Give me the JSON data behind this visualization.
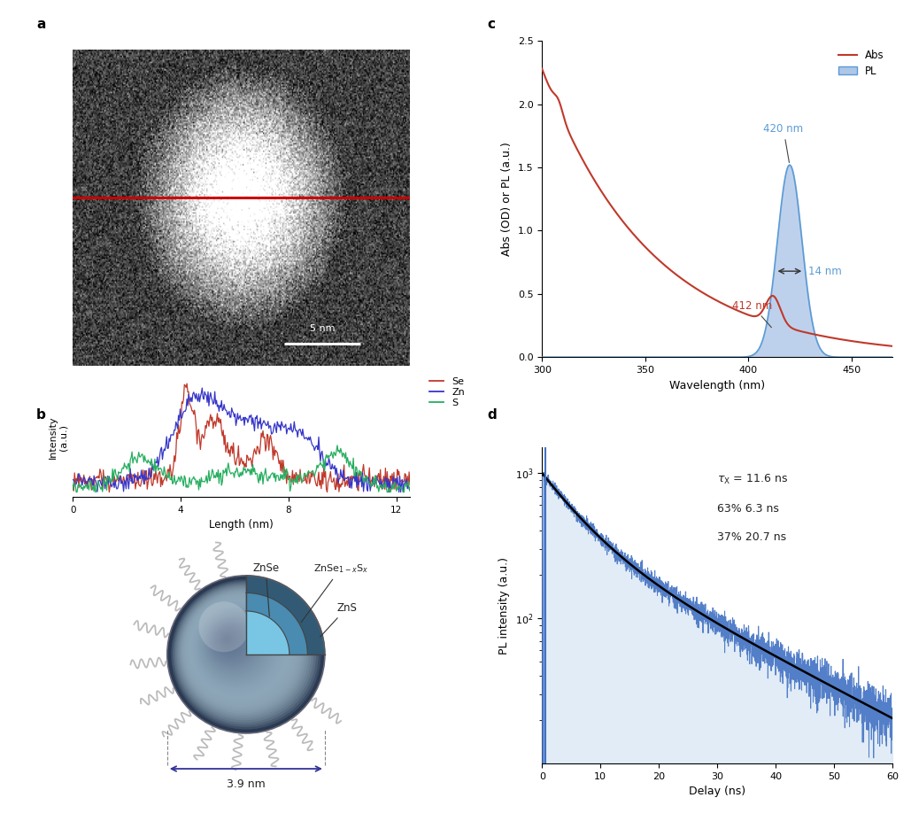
{
  "panel_labels": [
    "a",
    "b",
    "c",
    "d"
  ],
  "panel_label_fontsize": 11,
  "panel_label_weight": "bold",
  "abs_color": "#c0392b",
  "pl_color": "#5b9bd5",
  "pl_fill_color": "#aec6e8",
  "c_xlim": [
    300,
    470
  ],
  "c_ylim": [
    0,
    2.5
  ],
  "c_xlabel": "Wavelength (nm)",
  "c_ylabel": "Abs (OD) or PL (a.u.)",
  "d_xlim": [
    0,
    60
  ],
  "d_xlabel": "Delay (ns)",
  "d_ylabel": "PL intensity (a.u.)",
  "d_comp1_tau": 6.3,
  "d_comp2_tau": 20.7,
  "edl_color": "#4472c4",
  "edl_fill_color": "#dce9f5",
  "fit_color": "#000000",
  "line_profile_se_color": "#c0392b",
  "line_profile_zn_color": "#3636c8",
  "line_profile_s_color": "#27ae60",
  "bg_color": "#ffffff"
}
